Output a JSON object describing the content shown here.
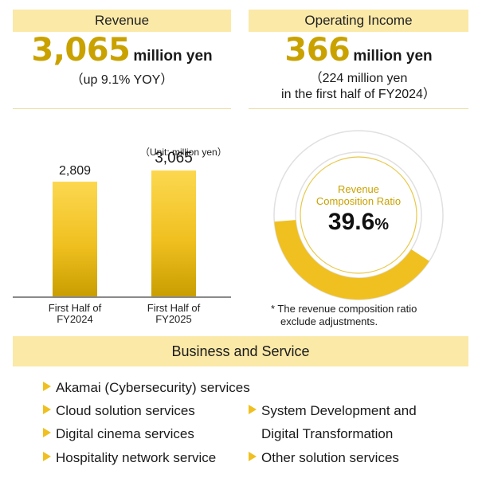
{
  "revenue": {
    "header": "Revenue",
    "value": "3,065",
    "unit": "million yen",
    "sub": "（up 9.1% YOY）"
  },
  "operating_income": {
    "header": "Operating Income",
    "value": "366",
    "unit": "million yen",
    "sub_line1": "（224 million yen",
    "sub_line2": "in the first half of FY2024）"
  },
  "chart_data": {
    "type": "bar",
    "unit_note": "（Unit: million yen）",
    "categories": [
      {
        "line1": "First Half of",
        "line2": "FY2024"
      },
      {
        "line1": "First Half of",
        "line2": "FY2025"
      }
    ],
    "values": [
      2809,
      3065
    ],
    "value_labels": [
      "2,809",
      "3,065"
    ],
    "ylim": [
      0,
      3500
    ]
  },
  "ratio": {
    "title_line1": "Revenue",
    "title_line2": "Composition Ratio",
    "value": "39.6",
    "unit": "%",
    "fraction": 0.396,
    "note_line1": "* The revenue composition ratio",
    "note_line2": "exclude adjustments."
  },
  "business": {
    "header": "Business and Service",
    "items": [
      "Akamai (Cybersecurity) services",
      "Cloud solution services",
      "Digital cinema services",
      "Hospitality network service",
      "System Development and",
      "Digital Transformation",
      "Other solution services"
    ]
  },
  "colors": {
    "accent": "#c9a200",
    "bar": "#f0c020",
    "header_bg": "#fbe9a8",
    "ring_bg": "#e6e6e6"
  }
}
